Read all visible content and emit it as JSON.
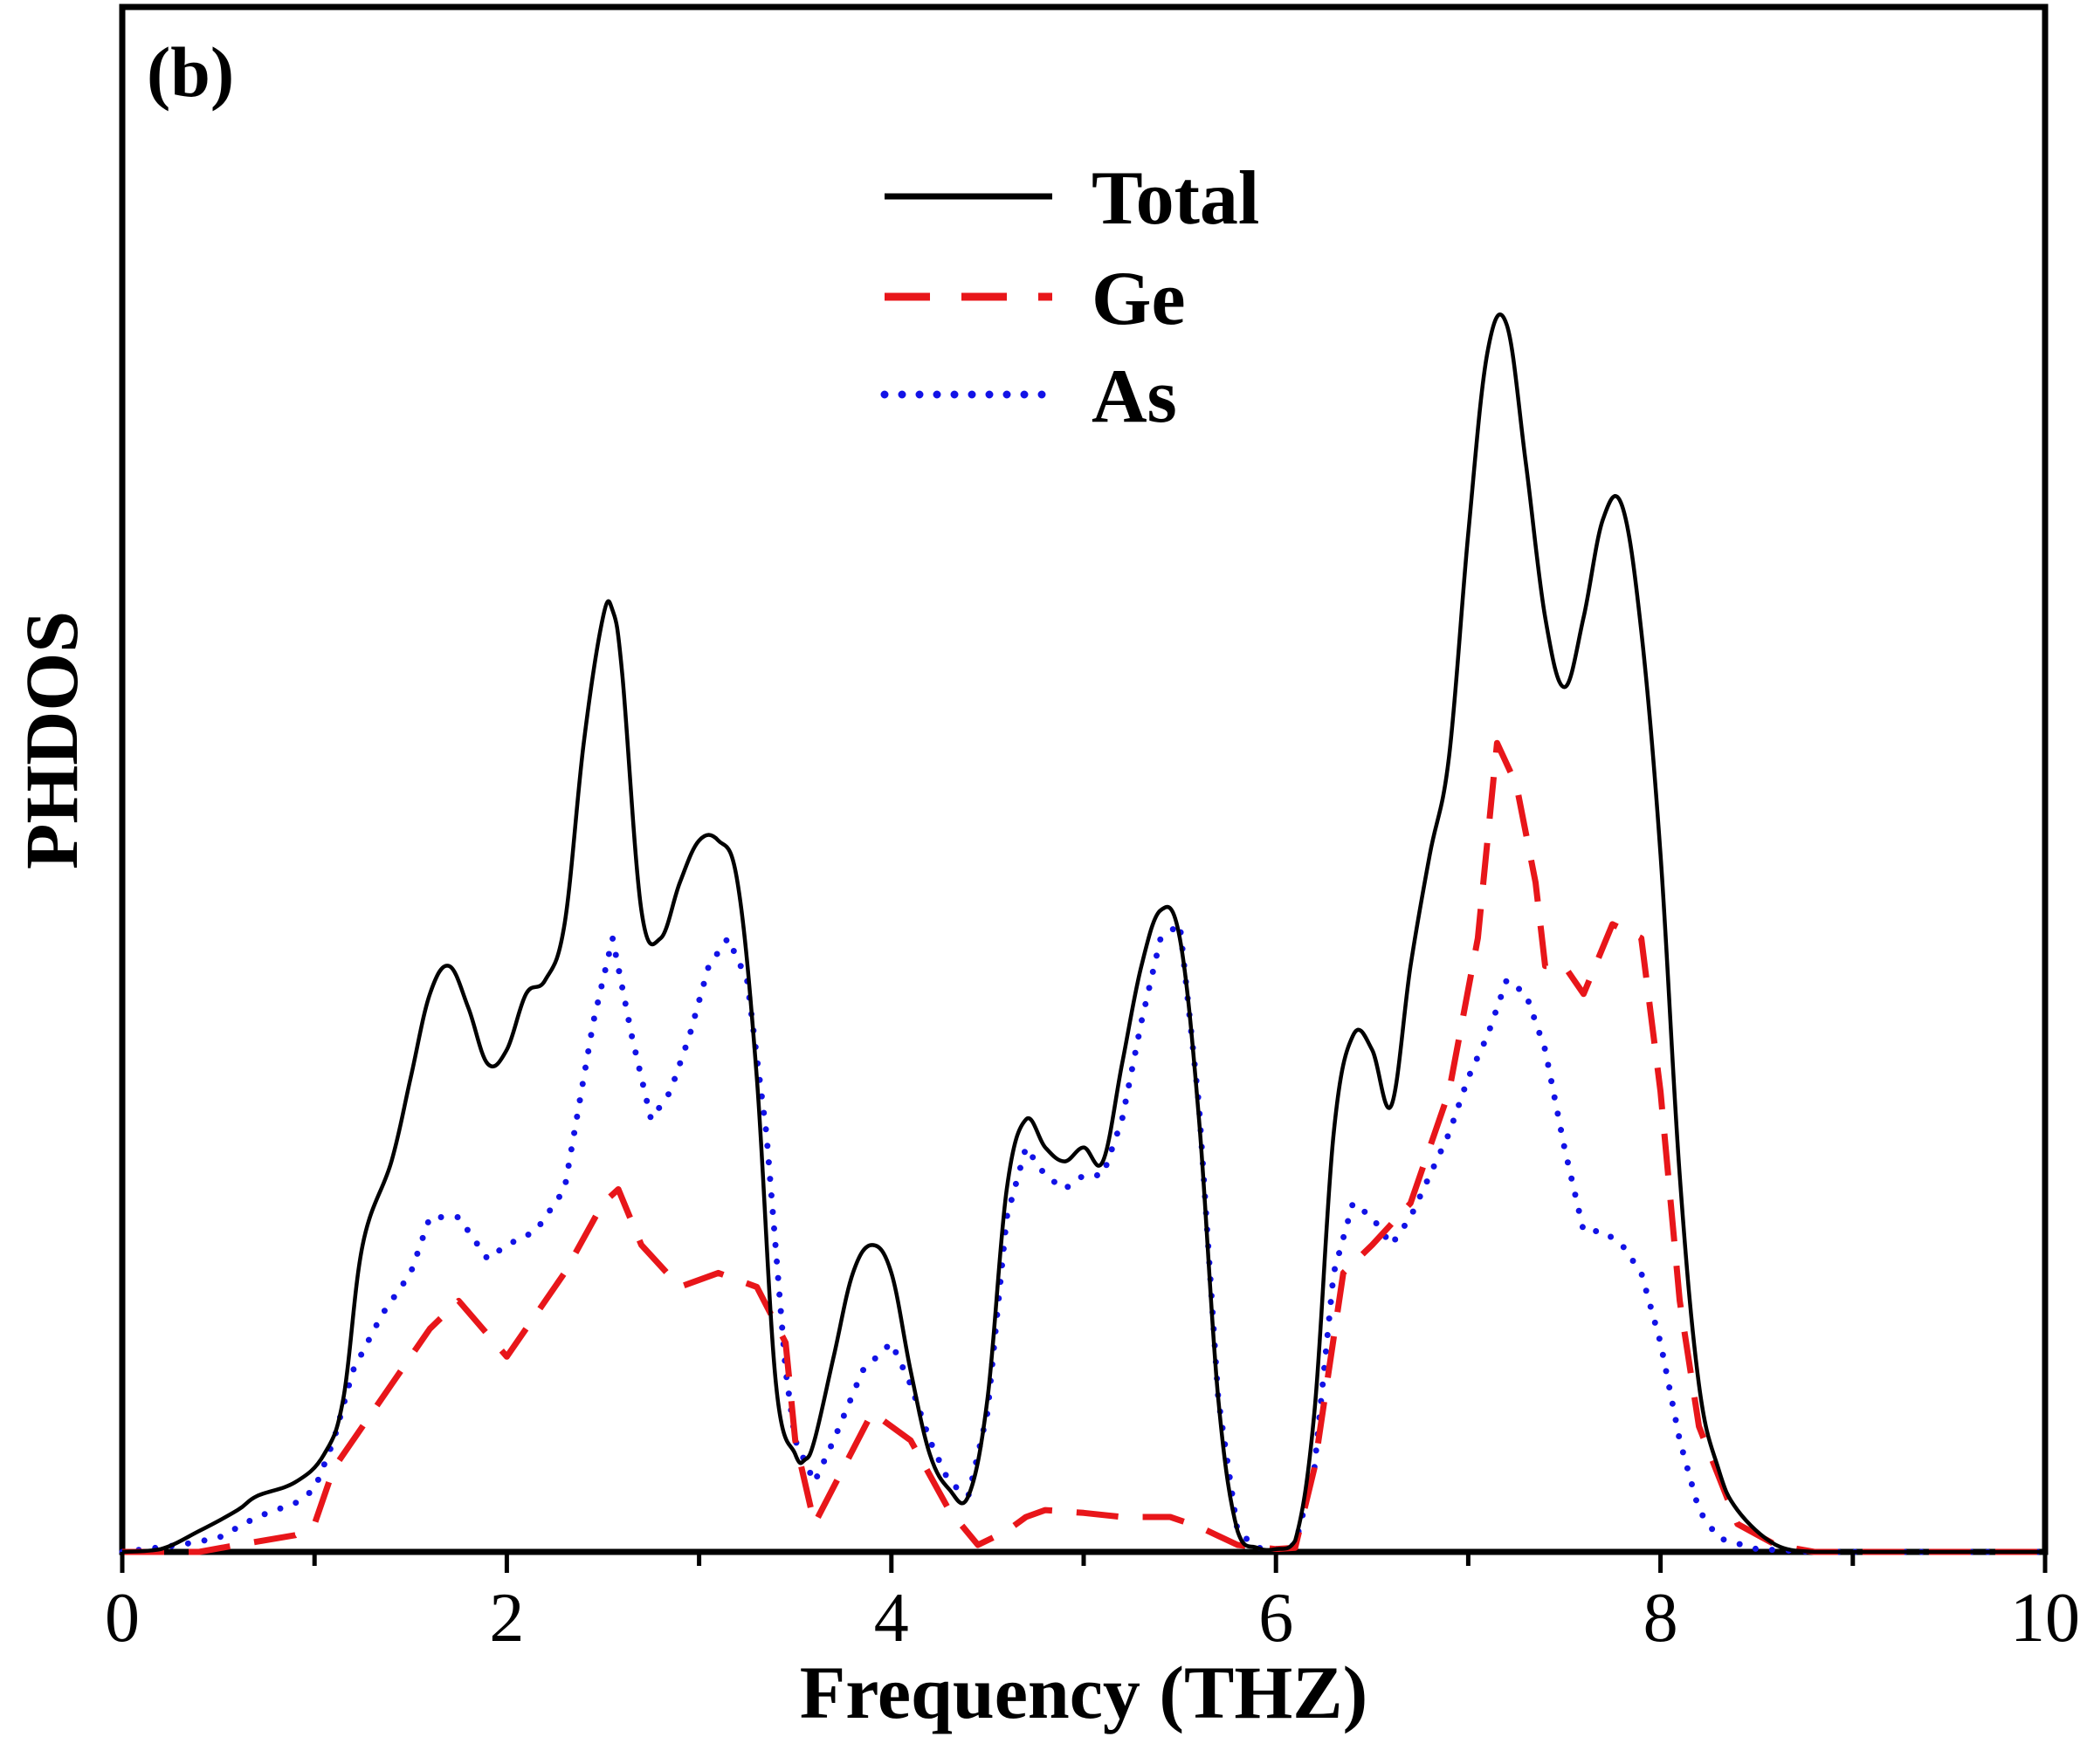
{
  "chart_data": {
    "type": "line",
    "panel_label": "(b)",
    "title": "",
    "xlabel": "Frequency (THZ)",
    "ylabel": "PHDOS",
    "xlim": [
      0,
      10
    ],
    "ylim": [
      0,
      1.0
    ],
    "x_ticks": [
      0,
      2,
      4,
      6,
      8,
      10
    ],
    "x_tick_labels": [
      "0",
      "2",
      "4",
      "6",
      "8",
      "10"
    ],
    "y_tick_labels_shown": false,
    "legend_position": "top-center",
    "series": [
      {
        "name": "Total",
        "color": "#000000",
        "style": "solid",
        "x": [
          0,
          0.2,
          0.4,
          0.6,
          0.7,
          0.9,
          1.05,
          1.15,
          1.25,
          1.4,
          1.5,
          1.6,
          1.7,
          1.8,
          1.9,
          2.0,
          2.1,
          2.2,
          2.3,
          2.4,
          2.5,
          2.55,
          2.6,
          2.7,
          2.8,
          2.9,
          3.0,
          3.1,
          3.2,
          3.3,
          3.4,
          3.5,
          3.55,
          3.6,
          3.7,
          3.8,
          3.9,
          4.0,
          4.1,
          4.2,
          4.3,
          4.4,
          4.5,
          4.6,
          4.7,
          4.8,
          4.9,
          5.0,
          5.1,
          5.2,
          5.3,
          5.4,
          5.5,
          5.6,
          5.7,
          5.8,
          5.9,
          6.0,
          6.1,
          6.2,
          6.3,
          6.4,
          6.5,
          6.6,
          6.7,
          6.8,
          6.9,
          7.0,
          7.1,
          7.2,
          7.3,
          7.4,
          7.5,
          7.6,
          7.7,
          7.8,
          7.9,
          8.0,
          8.1,
          8.2,
          8.3,
          8.4,
          8.6,
          8.8,
          9.0,
          10.0
        ],
        "values": [
          0,
          0.002,
          0.015,
          0.03,
          0.04,
          0.05,
          0.07,
          0.11,
          0.22,
          0.28,
          0.34,
          0.4,
          0.42,
          0.39,
          0.35,
          0.36,
          0.4,
          0.41,
          0.45,
          0.58,
          0.67,
          0.675,
          0.63,
          0.46,
          0.44,
          0.48,
          0.51,
          0.51,
          0.48,
          0.34,
          0.12,
          0.07,
          0.066,
          0.08,
          0.14,
          0.2,
          0.22,
          0.2,
          0.13,
          0.07,
          0.045,
          0.04,
          0.11,
          0.26,
          0.31,
          0.29,
          0.28,
          0.29,
          0.28,
          0.35,
          0.42,
          0.46,
          0.44,
          0.31,
          0.11,
          0.015,
          0.003,
          0.002,
          0.008,
          0.1,
          0.3,
          0.37,
          0.36,
          0.32,
          0.42,
          0.5,
          0.57,
          0.73,
          0.86,
          0.88,
          0.78,
          0.67,
          0.62,
          0.67,
          0.74,
          0.75,
          0.66,
          0.5,
          0.27,
          0.12,
          0.06,
          0.03,
          0.005,
          0,
          0,
          0
        ]
      },
      {
        "name": "Ge",
        "color": "#e8161a",
        "style": "dashed",
        "x": [
          0,
          0.4,
          0.6,
          0.9,
          1.0,
          1.1,
          1.2,
          1.4,
          1.6,
          1.75,
          2.0,
          2.3,
          2.5,
          2.58,
          2.7,
          2.9,
          3.1,
          3.3,
          3.45,
          3.5,
          3.6,
          3.9,
          4.1,
          4.3,
          4.45,
          4.6,
          4.7,
          4.8,
          5.0,
          5.2,
          5.45,
          5.6,
          5.8,
          6.0,
          6.1,
          6.2,
          6.35,
          6.5,
          6.7,
          6.9,
          7.05,
          7.15,
          7.25,
          7.35,
          7.4,
          7.5,
          7.6,
          7.75,
          7.9,
          8.0,
          8.1,
          8.2,
          8.4,
          8.6,
          8.8,
          10.0
        ],
        "values": [
          0,
          0,
          0.005,
          0.012,
          0.02,
          0.06,
          0.08,
          0.12,
          0.16,
          0.18,
          0.14,
          0.2,
          0.25,
          0.26,
          0.22,
          0.19,
          0.2,
          0.19,
          0.15,
          0.08,
          0.02,
          0.1,
          0.08,
          0.03,
          0.005,
          0.015,
          0.025,
          0.03,
          0.028,
          0.025,
          0.025,
          0.018,
          0.005,
          0.002,
          0.003,
          0.06,
          0.2,
          0.22,
          0.25,
          0.33,
          0.44,
          0.58,
          0.55,
          0.48,
          0.42,
          0.42,
          0.4,
          0.45,
          0.44,
          0.33,
          0.18,
          0.09,
          0.02,
          0.005,
          0,
          0
        ]
      },
      {
        "name": "As",
        "color": "#1212e6",
        "style": "dotted",
        "x": [
          0,
          0.3,
          0.5,
          0.7,
          0.9,
          1.0,
          1.1,
          1.2,
          1.35,
          1.5,
          1.6,
          1.75,
          1.9,
          2.0,
          2.15,
          2.3,
          2.45,
          2.55,
          2.65,
          2.75,
          2.85,
          2.95,
          3.05,
          3.15,
          3.25,
          3.35,
          3.45,
          3.5,
          3.6,
          3.7,
          3.85,
          4.0,
          4.1,
          4.2,
          4.3,
          4.4,
          4.5,
          4.6,
          4.7,
          4.8,
          4.9,
          5.0,
          5.1,
          5.2,
          5.3,
          5.4,
          5.5,
          5.6,
          5.7,
          5.8,
          5.9,
          6.0,
          6.1,
          6.2,
          6.3,
          6.4,
          6.5,
          6.6,
          6.7,
          6.8,
          6.9,
          7.0,
          7.1,
          7.2,
          7.3,
          7.4,
          7.5,
          7.6,
          7.7,
          7.8,
          7.9,
          8.0,
          8.1,
          8.2,
          8.3,
          8.5,
          8.8,
          10.0
        ],
        "values": [
          0,
          0.005,
          0.01,
          0.025,
          0.035,
          0.045,
          0.08,
          0.13,
          0.17,
          0.2,
          0.24,
          0.24,
          0.21,
          0.22,
          0.23,
          0.26,
          0.38,
          0.44,
          0.37,
          0.31,
          0.33,
          0.37,
          0.42,
          0.44,
          0.41,
          0.3,
          0.13,
          0.08,
          0.05,
          0.08,
          0.13,
          0.15,
          0.12,
          0.08,
          0.05,
          0.04,
          0.1,
          0.24,
          0.29,
          0.27,
          0.26,
          0.27,
          0.27,
          0.31,
          0.38,
          0.44,
          0.45,
          0.32,
          0.11,
          0.015,
          0.003,
          0.002,
          0.005,
          0.06,
          0.2,
          0.25,
          0.24,
          0.22,
          0.24,
          0.27,
          0.3,
          0.34,
          0.37,
          0.41,
          0.4,
          0.36,
          0.29,
          0.23,
          0.23,
          0.22,
          0.2,
          0.15,
          0.08,
          0.03,
          0.01,
          0.002,
          0,
          0
        ]
      }
    ]
  }
}
